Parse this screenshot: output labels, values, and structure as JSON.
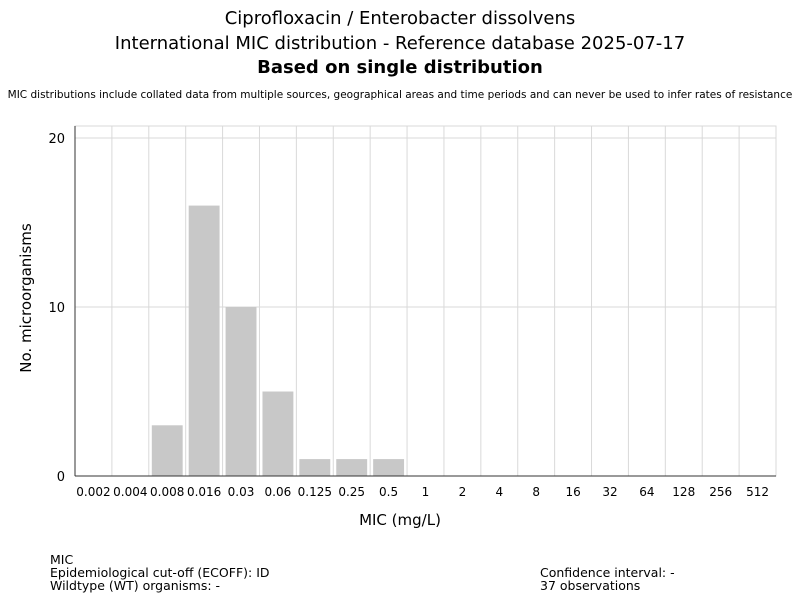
{
  "header": {
    "title": "Ciprofloxacin / Enterobacter dissolvens",
    "subtitle": "International MIC distribution - Reference database 2025-07-17",
    "basis": "Based on single distribution",
    "disclaimer": "MIC distributions include collated data from multiple sources, geographical areas and time periods and can never be used to infer rates of resistance"
  },
  "chart_data": {
    "type": "bar",
    "categories": [
      "0.002",
      "0.004",
      "0.008",
      "0.016",
      "0.03",
      "0.06",
      "0.125",
      "0.25",
      "0.5",
      "1",
      "2",
      "4",
      "8",
      "16",
      "32",
      "64",
      "128",
      "256",
      "512"
    ],
    "values": [
      0,
      0,
      3,
      16,
      10,
      5,
      1,
      1,
      1,
      0,
      0,
      0,
      0,
      0,
      0,
      0,
      0,
      0,
      0
    ],
    "xlabel": "MIC (mg/L)",
    "ylabel": "No. microorganisms",
    "ylim": [
      0,
      20
    ],
    "yticks": [
      0,
      10,
      20
    ],
    "grid": true,
    "bar_color": "#c8c8c8",
    "grid_color": "#d9d9d9"
  },
  "footer": {
    "label": "MIC",
    "ecoff": "Epidemiological cut-off (ECOFF): ID",
    "wildtype": "Wildtype (WT) organisms:  -",
    "confidence": "Confidence interval: -",
    "observations": "37 observations"
  }
}
